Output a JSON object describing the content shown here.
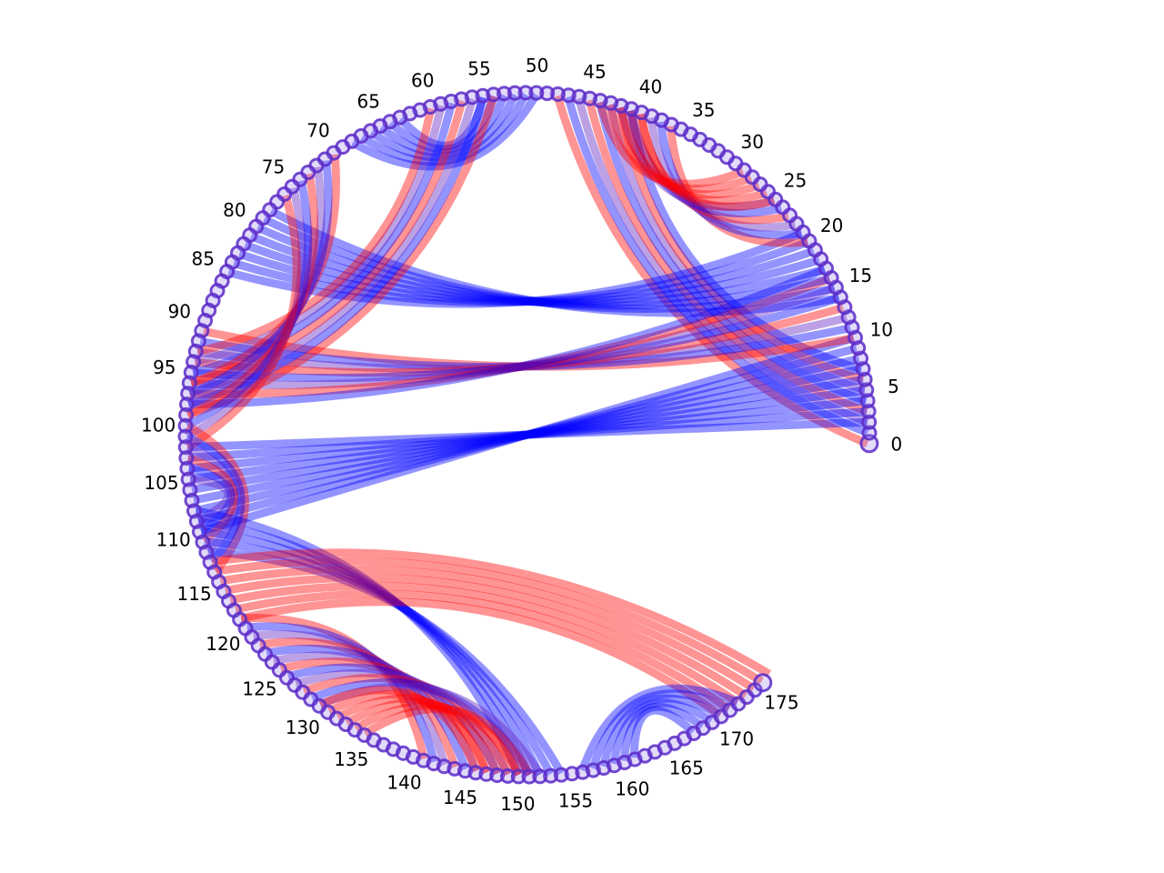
{
  "chart_data": {
    "type": "chord",
    "node_count": 176,
    "tick_labels": [
      "0",
      "5",
      "10",
      "15",
      "20",
      "25",
      "30",
      "35",
      "40",
      "45",
      "50",
      "55",
      "60",
      "65",
      "70",
      "75",
      "80",
      "85",
      "90",
      "95",
      "100",
      "105",
      "110",
      "115",
      "120",
      "125",
      "130",
      "135",
      "140",
      "145",
      "150",
      "155",
      "160",
      "165",
      "170",
      "175"
    ],
    "colors": {
      "red": "#ff0000",
      "blue": "#0000ff",
      "purple": "#6020c0",
      "node_ring": "#5a2ac8",
      "node_fill": "#8c6ee6"
    },
    "chord_groups": [
      {
        "name": "group-0-48",
        "from_start": 0,
        "to_start": 48,
        "count": 8,
        "from_step": 1,
        "to_step": -1,
        "color": "mix"
      },
      {
        "name": "group-5-105",
        "from_start": 2,
        "to_start": 102,
        "count": 9,
        "from_step": 1,
        "to_step": 1,
        "color": "blue"
      },
      {
        "name": "group-10-92",
        "from_start": 10,
        "to_start": 91,
        "count": 8,
        "from_step": 1,
        "to_step": 1,
        "color": "mix"
      },
      {
        "name": "group-15-80",
        "from_start": 14,
        "to_start": 78,
        "count": 8,
        "from_step": 1,
        "to_step": 1,
        "color": "blue"
      },
      {
        "name": "group-22-36",
        "from_start": 20,
        "to_start": 37,
        "count": 6,
        "from_step": 1,
        "to_step": 1,
        "color": "mix"
      },
      {
        "name": "group-26-42",
        "from_start": 25,
        "to_start": 40,
        "count": 5,
        "from_step": 1,
        "to_step": 1,
        "color": "red"
      },
      {
        "name": "group-50-66",
        "from_start": 50,
        "to_start": 68,
        "count": 6,
        "from_step": 1,
        "to_step": -1,
        "color": "blue"
      },
      {
        "name": "group-55-100",
        "from_start": 54,
        "to_start": 99,
        "count": 7,
        "from_step": 1,
        "to_step": -1,
        "color": "mix"
      },
      {
        "name": "group-70-88",
        "from_start": 70,
        "to_start": 96,
        "count": 7,
        "from_step": 1,
        "to_step": 1,
        "color": "mix"
      },
      {
        "name": "group-100-110",
        "from_start": 100,
        "to_start": 114,
        "count": 6,
        "from_step": 1,
        "to_step": -1,
        "color": "mix"
      },
      {
        "name": "group-110-145",
        "from_start": 108,
        "to_start": 150,
        "count": 5,
        "from_step": 1,
        "to_step": 1,
        "color": "blue"
      },
      {
        "name": "group-115-175",
        "from_start": 113,
        "to_start": 176,
        "count": 7,
        "from_step": 1,
        "to_step": -1,
        "color": "red"
      },
      {
        "name": "group-120-143",
        "from_start": 119,
        "to_start": 141,
        "count": 12,
        "from_step": 1,
        "to_step": 1,
        "color": "mix"
      },
      {
        "name": "group-130-148",
        "from_start": 130,
        "to_start": 146,
        "count": 6,
        "from_step": 1,
        "to_step": 1,
        "color": "red"
      },
      {
        "name": "group-155-172",
        "from_start": 156,
        "to_start": 172,
        "count": 6,
        "from_step": 1,
        "to_step": -1,
        "color": "blue"
      }
    ]
  }
}
